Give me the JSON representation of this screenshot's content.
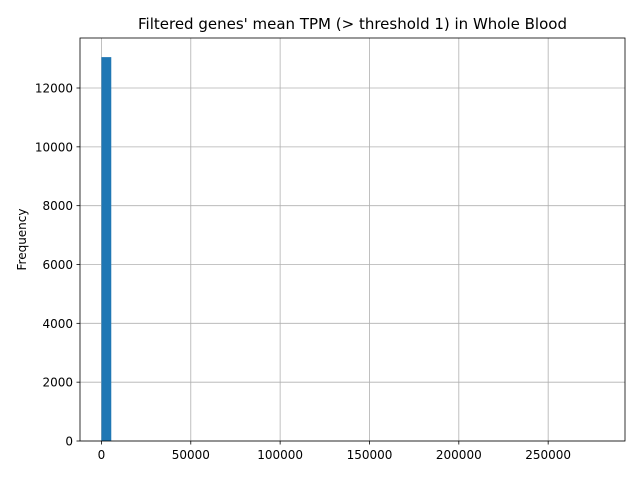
{
  "chart_data": {
    "type": "bar",
    "title": "Filtered genes' mean TPM (> threshold 1) in Whole Blood",
    "xlabel": "",
    "ylabel": "Frequency",
    "xlim": [
      -12000,
      293000
    ],
    "ylim": [
      0,
      13700
    ],
    "xticks": [
      0,
      50000,
      100000,
      150000,
      200000,
      250000
    ],
    "xtick_labels": [
      "0",
      "50000",
      "100000",
      "150000",
      "200000",
      "250000"
    ],
    "yticks": [
      0,
      2000,
      4000,
      6000,
      8000,
      10000,
      12000
    ],
    "ytick_labels": [
      "0",
      "2000",
      "4000",
      "6000",
      "8000",
      "10000",
      "12000"
    ],
    "grid": true,
    "bar_color": "#1f77b4",
    "grid_color": "#b0b0b0",
    "bins": [
      {
        "x0": 1,
        "x1": 5500,
        "count": 13050
      }
    ]
  }
}
